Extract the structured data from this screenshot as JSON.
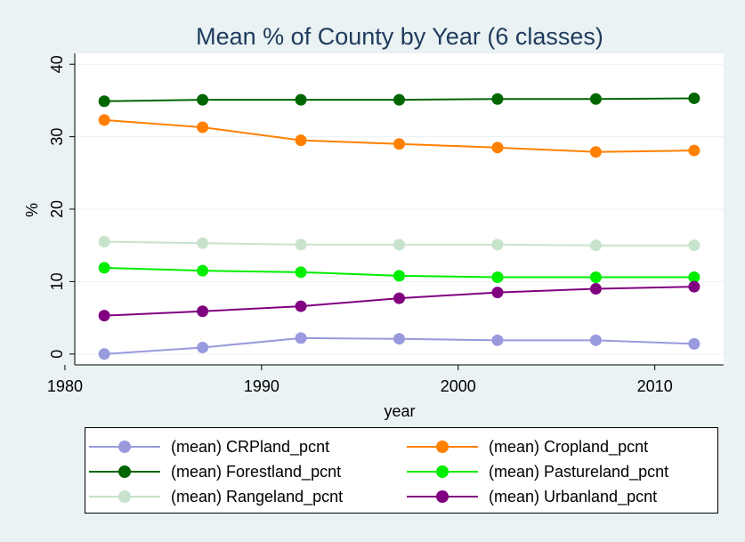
{
  "chart_data": {
    "type": "line",
    "title": "Mean % of County by Year (6 classes)",
    "xlabel": "year",
    "ylabel": "%",
    "xlim": [
      1980.5,
      2013.5
    ],
    "ylim": [
      -1.5,
      41.5
    ],
    "xticks": [
      1980,
      1990,
      2000,
      2010
    ],
    "yticks": [
      0,
      10,
      20,
      30,
      40
    ],
    "grid": "horizontal",
    "legend_position": "bottom",
    "x": [
      1982,
      1987,
      1992,
      1997,
      2002,
      2007,
      2012
    ],
    "series": [
      {
        "name": "(mean) CRPland_pcnt",
        "color": "#9999dd",
        "values": [
          0.0,
          0.9,
          2.2,
          2.1,
          1.9,
          1.9,
          1.4
        ]
      },
      {
        "name": "(mean) Cropland_pcnt",
        "color": "#ff8000",
        "values": [
          32.3,
          31.3,
          29.5,
          29.0,
          28.5,
          27.9,
          28.1
        ]
      },
      {
        "name": "(mean) Forestland_pcnt",
        "color": "#006600",
        "values": [
          34.9,
          35.1,
          35.1,
          35.1,
          35.2,
          35.2,
          35.3
        ]
      },
      {
        "name": "(mean) Pastureland_pcnt",
        "color": "#00ee00",
        "values": [
          11.9,
          11.5,
          11.3,
          10.8,
          10.6,
          10.6,
          10.6
        ]
      },
      {
        "name": "(mean) Rangeland_pcnt",
        "color": "#c7e3cc",
        "values": [
          15.5,
          15.3,
          15.1,
          15.1,
          15.1,
          15.0,
          15.0
        ]
      },
      {
        "name": "(mean) Urbanland_pcnt",
        "color": "#800080",
        "values": [
          5.3,
          5.9,
          6.6,
          7.7,
          8.5,
          9.0,
          9.3
        ]
      }
    ]
  }
}
